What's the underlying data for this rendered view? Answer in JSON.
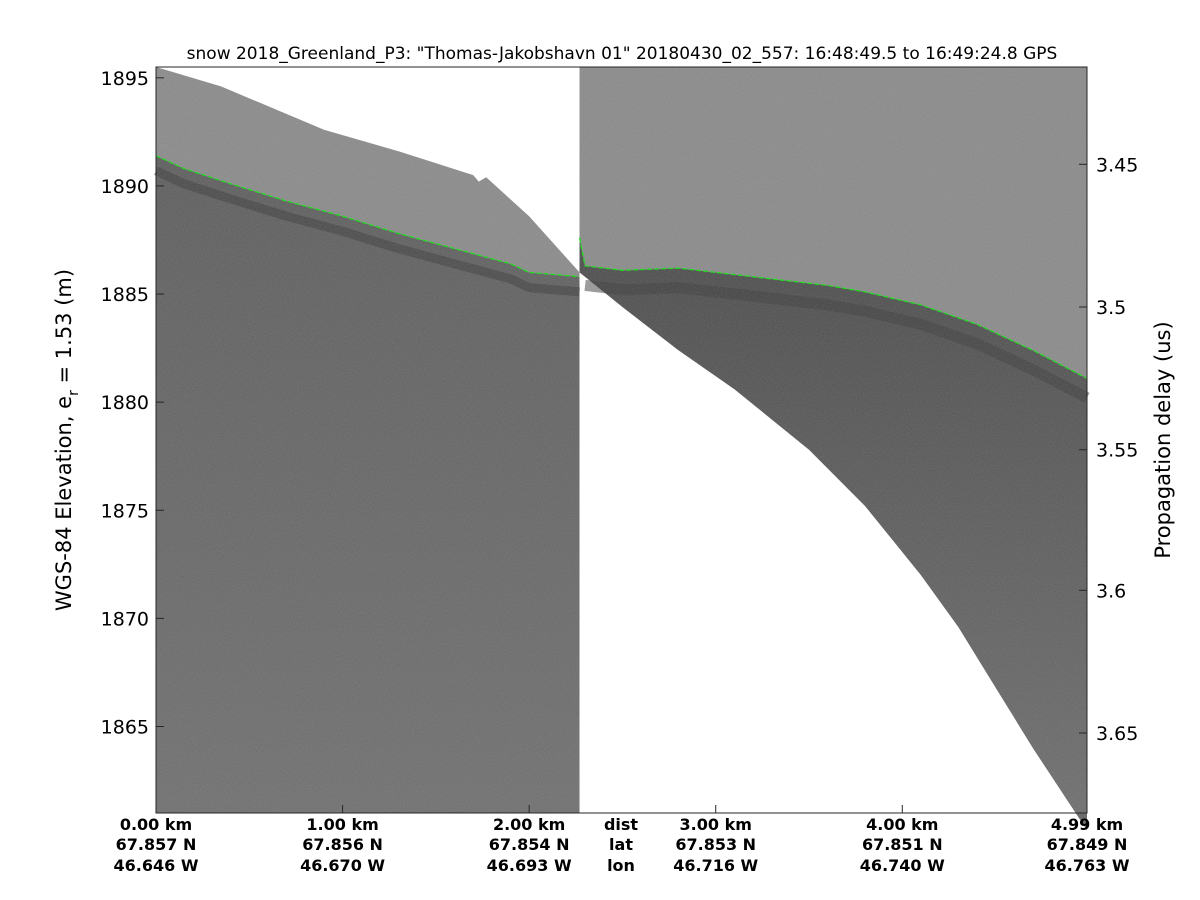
{
  "chart_data": {
    "type": "radar-echogram",
    "title": "snow 2018_Greenland_P3: \"Thomas-Jakobshavn 01\"  20180430_02_557: 16:48:49.5 to 16:49:24.8 GPS",
    "ylabel_left_main": "WGS-84 Elevation, e",
    "ylabel_left_sub": "r",
    "ylabel_left_tail": " = 1.53 (m)",
    "ylabel_right": "Propagation delay (us)",
    "ylim": [
      1861,
      1895.5
    ],
    "xlim": [
      0,
      4.99
    ],
    "left_ticks": [
      {
        "value": 1895,
        "label": "1895"
      },
      {
        "value": 1890,
        "label": "1890"
      },
      {
        "value": 1885,
        "label": "1885"
      },
      {
        "value": 1880,
        "label": "1880"
      },
      {
        "value": 1875,
        "label": "1875"
      },
      {
        "value": 1870,
        "label": "1870"
      },
      {
        "value": 1865,
        "label": "1865"
      }
    ],
    "right_ticks": [
      {
        "label": "3.45",
        "elev": 1891.0
      },
      {
        "label": "3.5",
        "elev": 1884.4
      },
      {
        "label": "3.55",
        "elev": 1877.8
      },
      {
        "label": "3.6",
        "elev": 1871.3
      },
      {
        "label": "3.65",
        "elev": 1864.7
      }
    ],
    "x_info": [
      {
        "x": 0.0,
        "dist": "0.00 km",
        "lat": "67.857 N",
        "lon": "46.646 W",
        "anchor": "start"
      },
      {
        "x": 1.0,
        "dist": "1.00 km",
        "lat": "67.856 N",
        "lon": "46.670 W",
        "anchor": "middle"
      },
      {
        "x": 2.0,
        "dist": "2.00 km",
        "lat": "67.854 N",
        "lon": "46.693 W",
        "anchor": "middle"
      },
      {
        "x": 3.0,
        "dist": "3.00 km",
        "lat": "67.853 N",
        "lon": "46.716 W",
        "anchor": "middle"
      },
      {
        "x": 4.0,
        "dist": "4.00 km",
        "lat": "67.851 N",
        "lon": "46.740 W",
        "anchor": "middle"
      },
      {
        "x": 4.99,
        "dist": "4.99 km",
        "lat": "67.849 N",
        "lon": "46.763 W",
        "anchor": "end"
      }
    ],
    "row_labels": {
      "x": 2.49,
      "dist": "dist",
      "lat": "lat",
      "lon": "lon"
    },
    "colors": {
      "surface_layer": "#22dd22",
      "upper_region": "#8a8a8a",
      "lower_region": "#6a6a6a",
      "dark_band": "#3a3a3a"
    },
    "segment_break_x": 2.27,
    "left_segment": {
      "top_boundary": [
        [
          0,
          1895.5
        ],
        [
          0.35,
          1894.6
        ],
        [
          0.9,
          1892.6
        ],
        [
          1.3,
          1891.6
        ],
        [
          1.7,
          1890.5
        ],
        [
          1.73,
          1890.2
        ],
        [
          1.77,
          1890.4
        ],
        [
          2.0,
          1888.6
        ],
        [
          2.27,
          1886.0
        ]
      ],
      "surface": [
        [
          0,
          1891.4
        ],
        [
          0.15,
          1890.8
        ],
        [
          0.4,
          1890.1
        ],
        [
          0.7,
          1889.3
        ],
        [
          1.0,
          1888.6
        ],
        [
          1.3,
          1887.8
        ],
        [
          1.6,
          1887.1
        ],
        [
          1.9,
          1886.4
        ],
        [
          2.0,
          1886.0
        ],
        [
          2.27,
          1885.8
        ]
      ]
    },
    "right_segment": {
      "bottom_boundary": [
        [
          2.27,
          1886.0
        ],
        [
          2.5,
          1884.4
        ],
        [
          2.8,
          1882.4
        ],
        [
          3.1,
          1880.6
        ],
        [
          3.5,
          1877.8
        ],
        [
          3.8,
          1875.2
        ],
        [
          4.1,
          1872.0
        ],
        [
          4.3,
          1869.6
        ],
        [
          4.5,
          1866.8
        ],
        [
          4.7,
          1864.0
        ],
        [
          4.99,
          1860.2
        ]
      ],
      "surface": [
        [
          2.27,
          1887.6
        ],
        [
          2.3,
          1886.3
        ],
        [
          2.5,
          1886.1
        ],
        [
          2.8,
          1886.2
        ],
        [
          3.1,
          1885.9
        ],
        [
          3.4,
          1885.6
        ],
        [
          3.6,
          1885.4
        ],
        [
          3.8,
          1885.1
        ],
        [
          4.1,
          1884.5
        ],
        [
          4.4,
          1883.6
        ],
        [
          4.7,
          1882.4
        ],
        [
          4.99,
          1881.1
        ]
      ]
    }
  }
}
